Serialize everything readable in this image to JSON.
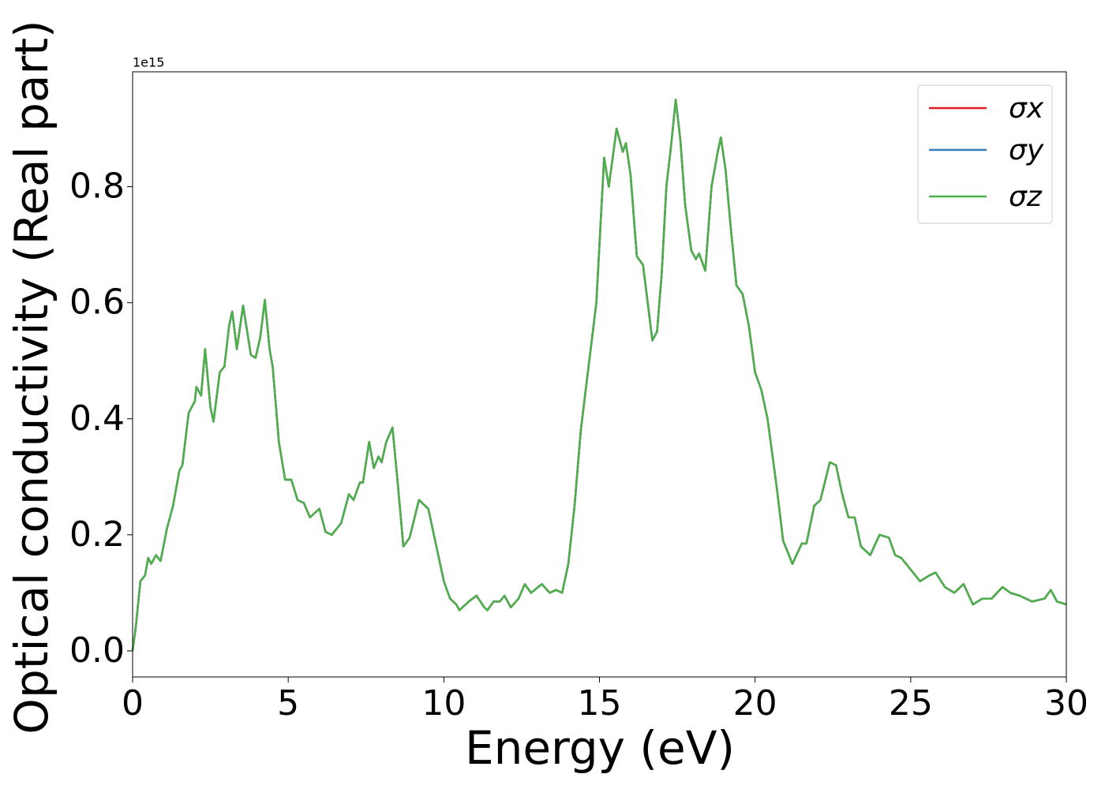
{
  "chart_data": {
    "type": "line",
    "x_label": "Energy (eV)",
    "y_label": "Optical conductivity (Real part)",
    "y_offset_text": "1e15",
    "xlim": [
      0,
      30
    ],
    "xticks": [
      0,
      5,
      10,
      15,
      20,
      25,
      30
    ],
    "ylim": [
      -0.045,
      0.998
    ],
    "yticks": [
      {
        "value": 0,
        "label": "0.0"
      },
      0.2,
      0.4,
      0.6,
      0.8
    ],
    "legend": "upper right",
    "x": [
      0,
      0.1,
      0.25,
      0.4,
      0.5,
      0.6,
      0.75,
      0.9,
      1.1,
      1.3,
      1.5,
      1.6,
      1.8,
      2.0,
      2.05,
      2.2,
      2.33,
      2.5,
      2.6,
      2.8,
      2.95,
      3.1,
      3.2,
      3.35,
      3.55,
      3.8,
      3.95,
      4.1,
      4.25,
      4.4,
      4.5,
      4.7,
      4.9,
      5.1,
      5.3,
      5.5,
      5.7,
      6.0,
      6.2,
      6.4,
      6.7,
      6.95,
      7.1,
      7.3,
      7.4,
      7.6,
      7.75,
      7.9,
      8.0,
      8.15,
      8.35,
      8.5,
      8.7,
      8.9,
      9.2,
      9.4,
      9.5,
      9.8,
      10.0,
      10.2,
      10.4,
      10.5,
      10.8,
      11.05,
      11.3,
      11.4,
      11.6,
      11.8,
      11.95,
      12.15,
      12.4,
      12.6,
      12.8,
      13.15,
      13.4,
      13.6,
      13.8,
      14.0,
      14.2,
      14.4,
      14.65,
      14.9,
      15.05,
      15.15,
      15.3,
      15.55,
      15.75,
      15.85,
      16.0,
      16.2,
      16.4,
      16.55,
      16.7,
      16.85,
      17.0,
      17.15,
      17.3,
      17.45,
      17.6,
      17.75,
      17.95,
      18.1,
      18.2,
      18.4,
      18.6,
      18.8,
      18.9,
      19.05,
      19.2,
      19.4,
      19.6,
      19.8,
      20.0,
      20.2,
      20.4,
      20.7,
      20.9,
      21.2,
      21.5,
      21.65,
      21.9,
      22.1,
      22.4,
      22.6,
      22.8,
      23.0,
      23.2,
      23.4,
      23.7,
      24.0,
      24.3,
      24.5,
      24.7,
      25.0,
      25.3,
      25.6,
      25.8,
      26.1,
      26.4,
      26.7,
      27.0,
      27.3,
      27.6,
      27.95,
      28.2,
      28.5,
      28.9,
      29.3,
      29.5,
      29.7,
      30.0
    ],
    "series": [
      {
        "name": "σx",
        "color": "#e41a1c",
        "values": [
          0,
          0.04,
          0.12,
          0.13,
          0.16,
          0.15,
          0.165,
          0.155,
          0.21,
          0.25,
          0.31,
          0.32,
          0.41,
          0.43,
          0.455,
          0.44,
          0.52,
          0.42,
          0.395,
          0.48,
          0.49,
          0.56,
          0.585,
          0.52,
          0.595,
          0.51,
          0.505,
          0.54,
          0.605,
          0.52,
          0.49,
          0.36,
          0.295,
          0.295,
          0.26,
          0.255,
          0.23,
          0.245,
          0.205,
          0.2,
          0.22,
          0.27,
          0.26,
          0.29,
          0.29,
          0.36,
          0.315,
          0.335,
          0.325,
          0.36,
          0.385,
          0.3,
          0.18,
          0.195,
          0.26,
          0.25,
          0.245,
          0.17,
          0.12,
          0.09,
          0.08,
          0.07,
          0.085,
          0.095,
          0.075,
          0.07,
          0.085,
          0.085,
          0.095,
          0.075,
          0.09,
          0.115,
          0.1,
          0.115,
          0.1,
          0.105,
          0.1,
          0.15,
          0.25,
          0.38,
          0.49,
          0.6,
          0.75,
          0.85,
          0.8,
          0.9,
          0.86,
          0.875,
          0.82,
          0.68,
          0.665,
          0.6,
          0.535,
          0.55,
          0.65,
          0.8,
          0.87,
          0.95,
          0.88,
          0.77,
          0.69,
          0.675,
          0.685,
          0.655,
          0.8,
          0.86,
          0.885,
          0.83,
          0.74,
          0.63,
          0.615,
          0.56,
          0.48,
          0.45,
          0.4,
          0.28,
          0.19,
          0.15,
          0.185,
          0.185,
          0.25,
          0.26,
          0.325,
          0.32,
          0.27,
          0.23,
          0.23,
          0.18,
          0.165,
          0.2,
          0.195,
          0.165,
          0.16,
          0.14,
          0.12,
          0.13,
          0.135,
          0.11,
          0.1,
          0.115,
          0.08,
          0.09,
          0.09,
          0.11,
          0.1,
          0.095,
          0.085,
          0.09,
          0.105,
          0.085,
          0.08
        ]
      },
      {
        "name": "σy",
        "color": "#377eb8",
        "values": [
          0,
          0.04,
          0.12,
          0.13,
          0.16,
          0.15,
          0.165,
          0.155,
          0.21,
          0.25,
          0.31,
          0.32,
          0.41,
          0.43,
          0.455,
          0.44,
          0.52,
          0.42,
          0.395,
          0.48,
          0.49,
          0.56,
          0.585,
          0.52,
          0.595,
          0.51,
          0.505,
          0.54,
          0.605,
          0.52,
          0.49,
          0.36,
          0.295,
          0.295,
          0.26,
          0.255,
          0.23,
          0.245,
          0.205,
          0.2,
          0.22,
          0.27,
          0.26,
          0.29,
          0.29,
          0.36,
          0.315,
          0.335,
          0.325,
          0.36,
          0.385,
          0.3,
          0.18,
          0.195,
          0.26,
          0.25,
          0.245,
          0.17,
          0.12,
          0.09,
          0.08,
          0.07,
          0.085,
          0.095,
          0.075,
          0.07,
          0.085,
          0.085,
          0.095,
          0.075,
          0.09,
          0.115,
          0.1,
          0.115,
          0.1,
          0.105,
          0.1,
          0.15,
          0.25,
          0.38,
          0.49,
          0.6,
          0.75,
          0.85,
          0.8,
          0.9,
          0.86,
          0.875,
          0.82,
          0.68,
          0.665,
          0.6,
          0.535,
          0.55,
          0.65,
          0.8,
          0.87,
          0.95,
          0.88,
          0.77,
          0.69,
          0.675,
          0.685,
          0.655,
          0.8,
          0.86,
          0.885,
          0.83,
          0.74,
          0.63,
          0.615,
          0.56,
          0.48,
          0.45,
          0.4,
          0.28,
          0.19,
          0.15,
          0.185,
          0.185,
          0.25,
          0.26,
          0.325,
          0.32,
          0.27,
          0.23,
          0.23,
          0.18,
          0.165,
          0.2,
          0.195,
          0.165,
          0.16,
          0.14,
          0.12,
          0.13,
          0.135,
          0.11,
          0.1,
          0.115,
          0.08,
          0.09,
          0.09,
          0.11,
          0.1,
          0.095,
          0.085,
          0.09,
          0.105,
          0.085,
          0.08
        ]
      },
      {
        "name": "σz",
        "color": "#4daf4a",
        "values": [
          0,
          0.04,
          0.12,
          0.13,
          0.16,
          0.15,
          0.165,
          0.155,
          0.21,
          0.25,
          0.31,
          0.32,
          0.41,
          0.43,
          0.455,
          0.44,
          0.52,
          0.42,
          0.395,
          0.48,
          0.49,
          0.56,
          0.585,
          0.52,
          0.595,
          0.51,
          0.505,
          0.54,
          0.605,
          0.52,
          0.49,
          0.36,
          0.295,
          0.295,
          0.26,
          0.255,
          0.23,
          0.245,
          0.205,
          0.2,
          0.22,
          0.27,
          0.26,
          0.29,
          0.29,
          0.36,
          0.315,
          0.335,
          0.325,
          0.36,
          0.385,
          0.3,
          0.18,
          0.195,
          0.26,
          0.25,
          0.245,
          0.17,
          0.12,
          0.09,
          0.08,
          0.07,
          0.085,
          0.095,
          0.075,
          0.07,
          0.085,
          0.085,
          0.095,
          0.075,
          0.09,
          0.115,
          0.1,
          0.115,
          0.1,
          0.105,
          0.1,
          0.15,
          0.25,
          0.38,
          0.49,
          0.6,
          0.75,
          0.85,
          0.8,
          0.9,
          0.86,
          0.875,
          0.82,
          0.68,
          0.665,
          0.6,
          0.535,
          0.55,
          0.65,
          0.8,
          0.87,
          0.95,
          0.88,
          0.77,
          0.69,
          0.675,
          0.685,
          0.655,
          0.8,
          0.86,
          0.885,
          0.83,
          0.74,
          0.63,
          0.615,
          0.56,
          0.48,
          0.45,
          0.4,
          0.28,
          0.19,
          0.15,
          0.185,
          0.185,
          0.25,
          0.26,
          0.325,
          0.32,
          0.27,
          0.23,
          0.23,
          0.18,
          0.165,
          0.2,
          0.195,
          0.165,
          0.16,
          0.14,
          0.12,
          0.13,
          0.135,
          0.11,
          0.1,
          0.115,
          0.08,
          0.09,
          0.09,
          0.11,
          0.1,
          0.095,
          0.085,
          0.09,
          0.105,
          0.085,
          0.08
        ]
      }
    ]
  }
}
